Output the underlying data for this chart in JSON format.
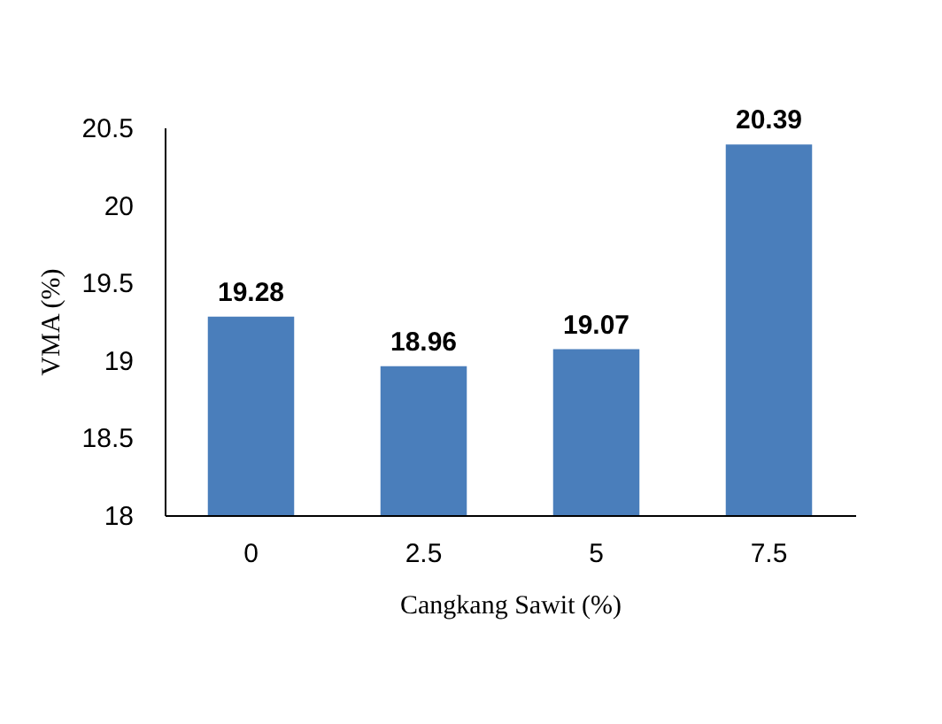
{
  "chart_data": {
    "type": "bar",
    "xlabel": "Cangkang Sawit (%)",
    "ylabel": "VMA (%)",
    "categories": [
      "0",
      "2.5",
      "5",
      "7.5"
    ],
    "values": [
      19.28,
      18.96,
      19.07,
      20.39
    ],
    "color": "#4a7ebb",
    "ylim": [
      18,
      20.5
    ],
    "yticks": [
      18,
      18.5,
      19,
      19.5,
      20,
      20.5
    ],
    "data_labels": true,
    "grid": false
  }
}
